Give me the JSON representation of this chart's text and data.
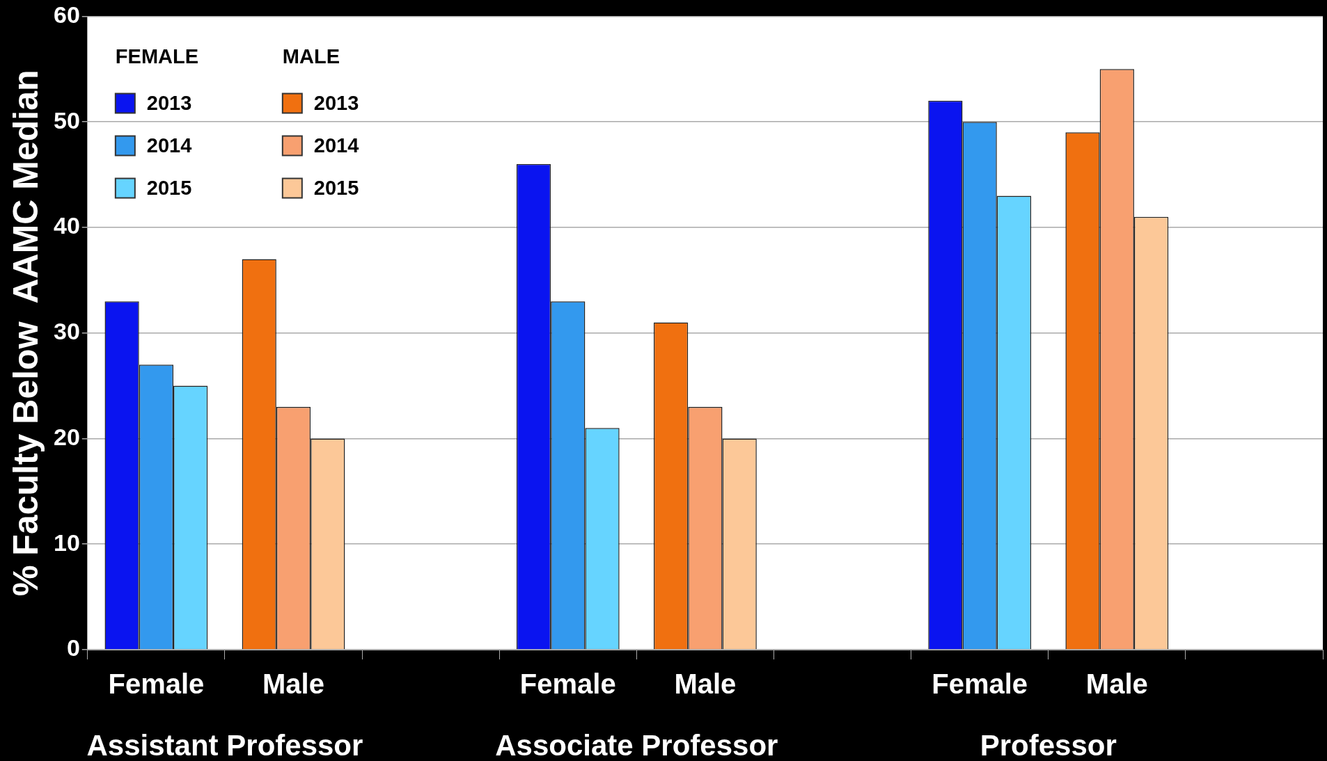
{
  "chart_data": {
    "type": "bar",
    "ylabel": "% Faculty Below  AAMC Median",
    "categories": [
      "Female",
      "Male",
      null,
      "Female",
      "Male",
      null,
      "Female",
      "Male",
      null
    ],
    "series": [
      {
        "name": "2013",
        "color": "#0a14f0",
        "values": [
          33,
          null,
          null,
          46,
          null,
          null,
          52,
          null,
          null
        ]
      },
      {
        "name": "2014",
        "color": "#3399ee",
        "values": [
          27,
          null,
          null,
          33,
          null,
          null,
          50,
          null,
          null
        ]
      },
      {
        "name": "2015",
        "color": "#66d4ff",
        "values": [
          25,
          null,
          null,
          21,
          null,
          null,
          43,
          null,
          null
        ]
      },
      {
        "name": "2013",
        "color": "#f07010",
        "values": [
          null,
          37,
          null,
          null,
          31,
          null,
          null,
          49,
          null
        ]
      },
      {
        "name": "2014",
        "color": "#f8a070",
        "values": [
          null,
          23,
          null,
          null,
          23,
          null,
          null,
          55,
          null
        ]
      },
      {
        "name": "2015",
        "color": "#fcc898",
        "values": [
          null,
          20,
          null,
          null,
          20,
          null,
          null,
          41,
          null
        ]
      }
    ],
    "ylim": [
      0,
      60
    ],
    "yticks": [
      0,
      10,
      20,
      30,
      40,
      50,
      60
    ],
    "grid": "y",
    "legend": "top left",
    "annotations": [
      "FEMALE",
      "MALE",
      "Assistant Professor",
      "Associate Professor",
      "Professor"
    ]
  }
}
